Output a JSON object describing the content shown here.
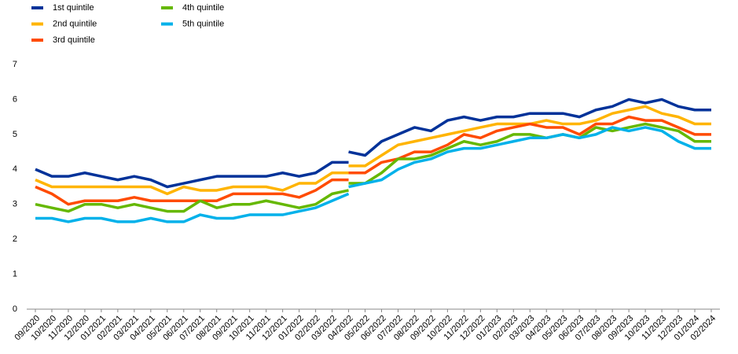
{
  "chart_data": {
    "type": "line",
    "categories": [
      "09/2020",
      "10/2020",
      "11/2020",
      "12/2020",
      "01/2021",
      "02/2021",
      "03/2021",
      "04/2021",
      "05/2021",
      "06/2021",
      "07/2021",
      "08/2021",
      "09/2021",
      "10/2021",
      "11/2021",
      "12/2021",
      "01/2022",
      "02/2022",
      "03/2022",
      "04/2022",
      "05/2022",
      "06/2022",
      "07/2022",
      "08/2022",
      "09/2022",
      "10/2022",
      "11/2022",
      "12/2022",
      "01/2023",
      "02/2023",
      "03/2023",
      "04/2023",
      "05/2023",
      "06/2023",
      "07/2023",
      "08/2023",
      "09/2023",
      "10/2023",
      "11/2023",
      "12/2023",
      "01/2024",
      "02/2024"
    ],
    "ylim": [
      0,
      7
    ],
    "yticks": [
      0,
      1,
      2,
      3,
      4,
      5,
      6,
      7
    ],
    "grid": false,
    "series": [
      {
        "name": "1st quintile",
        "color": "#003299",
        "values_old": [
          4.0,
          3.8,
          3.8,
          3.9,
          3.8,
          3.7,
          3.8,
          3.7,
          3.5,
          3.6,
          3.7,
          3.8,
          3.8,
          3.8,
          3.8,
          3.9,
          3.8,
          3.9,
          4.2,
          4.2,
          null,
          null,
          null,
          null,
          null,
          null,
          null,
          null,
          null,
          null,
          null,
          null,
          null,
          null,
          null,
          null,
          null,
          null,
          null,
          null,
          null,
          null
        ],
        "values_new": [
          null,
          null,
          null,
          null,
          null,
          null,
          null,
          null,
          null,
          null,
          null,
          null,
          null,
          null,
          null,
          null,
          null,
          null,
          null,
          4.5,
          4.4,
          4.8,
          5.0,
          5.2,
          5.1,
          5.4,
          5.5,
          5.4,
          5.5,
          5.5,
          5.6,
          5.6,
          5.6,
          5.5,
          5.7,
          5.8,
          6.0,
          5.9,
          6.0,
          5.8,
          5.7,
          5.7
        ]
      },
      {
        "name": "2nd quintile",
        "color": "#ffb400",
        "values_old": [
          3.7,
          3.5,
          3.5,
          3.5,
          3.5,
          3.5,
          3.5,
          3.5,
          3.3,
          3.5,
          3.4,
          3.4,
          3.5,
          3.5,
          3.5,
          3.4,
          3.6,
          3.6,
          3.9,
          3.9,
          null,
          null,
          null,
          null,
          null,
          null,
          null,
          null,
          null,
          null,
          null,
          null,
          null,
          null,
          null,
          null,
          null,
          null,
          null,
          null,
          null,
          null
        ],
        "values_new": [
          null,
          null,
          null,
          null,
          null,
          null,
          null,
          null,
          null,
          null,
          null,
          null,
          null,
          null,
          null,
          null,
          null,
          null,
          null,
          4.1,
          4.1,
          4.4,
          4.7,
          4.8,
          4.9,
          5.0,
          5.1,
          5.2,
          5.3,
          5.3,
          5.3,
          5.4,
          5.3,
          5.3,
          5.4,
          5.6,
          5.7,
          5.8,
          5.6,
          5.5,
          5.3,
          5.3
        ]
      },
      {
        "name": "3rd quintile",
        "color": "#ff4b00",
        "values_old": [
          3.5,
          3.3,
          3.0,
          3.1,
          3.1,
          3.1,
          3.2,
          3.1,
          3.1,
          3.1,
          3.1,
          3.1,
          3.3,
          3.3,
          3.3,
          3.3,
          3.2,
          3.4,
          3.7,
          3.7,
          null,
          null,
          null,
          null,
          null,
          null,
          null,
          null,
          null,
          null,
          null,
          null,
          null,
          null,
          null,
          null,
          null,
          null,
          null,
          null,
          null,
          null
        ],
        "values_new": [
          null,
          null,
          null,
          null,
          null,
          null,
          null,
          null,
          null,
          null,
          null,
          null,
          null,
          null,
          null,
          null,
          null,
          null,
          null,
          3.9,
          3.9,
          4.2,
          4.3,
          4.5,
          4.5,
          4.7,
          5.0,
          4.9,
          5.1,
          5.2,
          5.3,
          5.2,
          5.2,
          5.0,
          5.3,
          5.3,
          5.5,
          5.4,
          5.4,
          5.2,
          5.0,
          5.0
        ]
      },
      {
        "name": "4th quintile",
        "color": "#65b800",
        "values_old": [
          3.0,
          2.9,
          2.8,
          3.0,
          3.0,
          2.9,
          3.0,
          2.9,
          2.8,
          2.8,
          3.1,
          2.9,
          3.0,
          3.0,
          3.1,
          3.0,
          2.9,
          3.0,
          3.3,
          3.4,
          null,
          null,
          null,
          null,
          null,
          null,
          null,
          null,
          null,
          null,
          null,
          null,
          null,
          null,
          null,
          null,
          null,
          null,
          null,
          null,
          null,
          null
        ],
        "values_new": [
          null,
          null,
          null,
          null,
          null,
          null,
          null,
          null,
          null,
          null,
          null,
          null,
          null,
          null,
          null,
          null,
          null,
          null,
          null,
          3.6,
          3.6,
          3.9,
          4.3,
          4.3,
          4.4,
          4.6,
          4.8,
          4.7,
          4.8,
          5.0,
          5.0,
          4.9,
          5.0,
          4.9,
          5.2,
          5.1,
          5.2,
          5.3,
          5.2,
          5.1,
          4.8,
          4.8
        ]
      },
      {
        "name": "5th quintile",
        "color": "#00b1ea",
        "values_old": [
          2.6,
          2.6,
          2.5,
          2.6,
          2.6,
          2.5,
          2.5,
          2.6,
          2.5,
          2.5,
          2.7,
          2.6,
          2.6,
          2.7,
          2.7,
          2.7,
          2.8,
          2.9,
          3.1,
          3.3,
          null,
          null,
          null,
          null,
          null,
          null,
          null,
          null,
          null,
          null,
          null,
          null,
          null,
          null,
          null,
          null,
          null,
          null,
          null,
          null,
          null,
          null
        ],
        "values_new": [
          null,
          null,
          null,
          null,
          null,
          null,
          null,
          null,
          null,
          null,
          null,
          null,
          null,
          null,
          null,
          null,
          null,
          null,
          null,
          3.5,
          3.6,
          3.7,
          4.0,
          4.2,
          4.3,
          4.5,
          4.6,
          4.6,
          4.7,
          4.8,
          4.9,
          4.9,
          5.0,
          4.9,
          5.0,
          5.2,
          5.1,
          5.2,
          5.1,
          4.8,
          4.6,
          4.6
        ]
      }
    ]
  }
}
